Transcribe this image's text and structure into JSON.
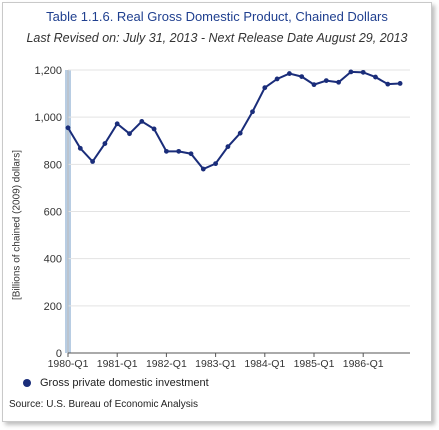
{
  "chart_data": {
    "type": "line",
    "title": "Table 1.1.6. Real Gross Domestic Product, Chained Dollars",
    "subtitle": "Last Revised on: July 31, 2013 - Next Release Date August 29, 2013",
    "ylabel": "[Billions of chained (2009) dollars]",
    "xlabel": "",
    "ylim": [
      0,
      1200
    ],
    "yticks": [
      0,
      200,
      400,
      600,
      800,
      1000,
      1200
    ],
    "ytick_labels": [
      "0",
      "200",
      "400",
      "600",
      "800",
      "1,000",
      "1,200"
    ],
    "x_tick_labels": [
      "1980-Q1",
      "1981-Q1",
      "1982-Q1",
      "1983-Q1",
      "1984-Q1",
      "1985-Q1",
      "1986-Q1"
    ],
    "x_tick_quarter_index": [
      0,
      4,
      8,
      12,
      16,
      20,
      24
    ],
    "highlight_quarter": "1980-Q1",
    "grid": "horizontal",
    "legend_position": "bottom-left",
    "series": [
      {
        "name": "Gross private domestic investment",
        "color": "#1a2d7a",
        "quarters": [
          "1980-Q1",
          "1980-Q2",
          "1980-Q3",
          "1980-Q4",
          "1981-Q1",
          "1981-Q2",
          "1981-Q3",
          "1981-Q4",
          "1982-Q1",
          "1982-Q2",
          "1982-Q3",
          "1982-Q4",
          "1983-Q1",
          "1983-Q2",
          "1983-Q3",
          "1983-Q4",
          "1984-Q1",
          "1984-Q2",
          "1984-Q3",
          "1984-Q4",
          "1985-Q1",
          "1985-Q2",
          "1985-Q3",
          "1985-Q4",
          "1986-Q1",
          "1986-Q2",
          "1986-Q3",
          "1986-Q4"
        ],
        "values": [
          955,
          868,
          812,
          888,
          972,
          930,
          982,
          950,
          855,
          855,
          845,
          780,
          803,
          875,
          932,
          1023,
          1125,
          1162,
          1185,
          1172,
          1138,
          1155,
          1148,
          1192,
          1190,
          1170,
          1140,
          1143
        ]
      }
    ]
  },
  "source": "Source: U.S. Bureau of Economic Analysis"
}
